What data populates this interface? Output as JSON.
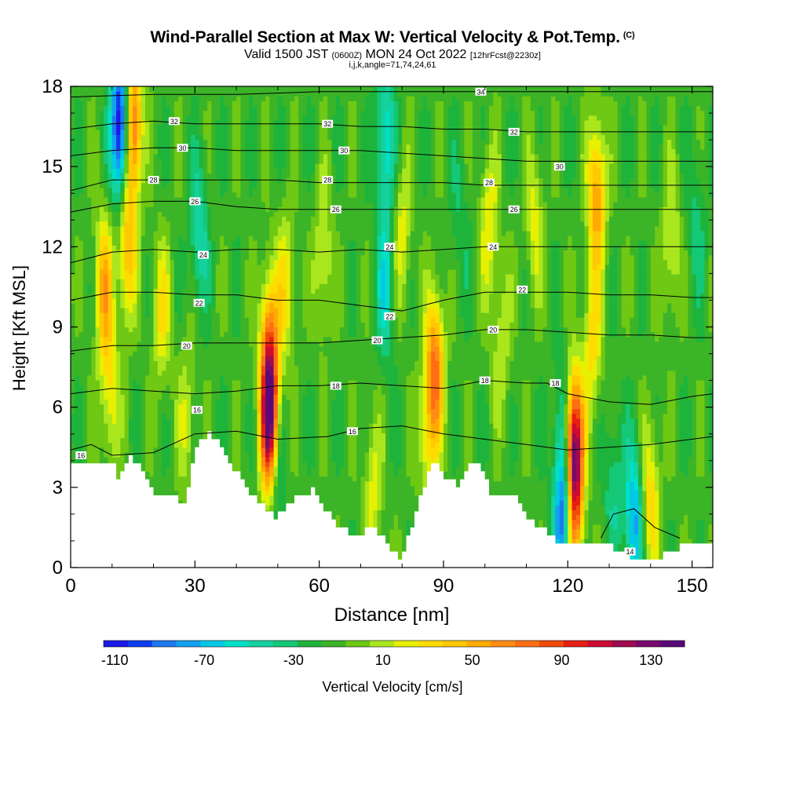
{
  "title": {
    "main": "Wind-Parallel Section at Max W: Vertical Velocity & Pot.Temp.",
    "main_tag": "(C)",
    "valid_prefix": "Valid 1500 JST",
    "valid_utc": "(0600Z)",
    "valid_date": "MON 24 Oct 2022",
    "forecast": "[12hrFcst@2230z]",
    "params": "i,j,k,angle=71,74,24,61"
  },
  "colors": {
    "terrain": "#ffffff",
    "contour_line": "#000000",
    "palette": [
      "#1a1ae6",
      "#0f3cf0",
      "#1e78f0",
      "#14a0f0",
      "#00c8e6",
      "#00e0c8",
      "#14d2a0",
      "#14c878",
      "#1eb43c",
      "#3cb428",
      "#6ec814",
      "#aae61e",
      "#e6f000",
      "#ffdc00",
      "#ffc800",
      "#ffaa00",
      "#ff8c14",
      "#ff6e14",
      "#f04b0a",
      "#e61e14",
      "#cd0a32",
      "#a00a50",
      "#780a6e",
      "#5a0a78"
    ]
  },
  "chart_data": {
    "type": "heatmap",
    "description_fields": "filled contours of vertical velocity with black potential temperature isolines",
    "xlabel": "Distance [nm]",
    "ylabel": "Height [Kft MSL]",
    "xlim": [
      0,
      155
    ],
    "ylim": [
      0,
      18
    ],
    "xticks": [
      0,
      30,
      60,
      90,
      120,
      150
    ],
    "yticks": [
      0,
      3,
      6,
      9,
      12,
      15,
      18
    ],
    "colorbar": {
      "label": "Vertical Velocity [cm/s]",
      "min": -115,
      "max": 145,
      "step": 10,
      "tick_labels": [
        -110,
        -70,
        -30,
        10,
        50,
        90,
        130
      ]
    },
    "terrain_kft": [
      [
        0,
        3.9
      ],
      [
        10,
        3.9
      ],
      [
        11,
        3.4
      ],
      [
        14,
        4.2
      ],
      [
        17,
        3.6
      ],
      [
        20,
        2.6
      ],
      [
        25,
        2.6
      ],
      [
        27,
        2.3
      ],
      [
        30,
        4.6
      ],
      [
        33,
        5.0
      ],
      [
        37,
        4.3
      ],
      [
        42,
        2.9
      ],
      [
        47,
        2.1
      ],
      [
        49,
        1.9
      ],
      [
        52,
        2.4
      ],
      [
        58,
        2.9
      ],
      [
        61,
        2.2
      ],
      [
        64,
        1.6
      ],
      [
        67,
        1.3
      ],
      [
        70,
        1.3
      ],
      [
        73,
        1.6
      ],
      [
        76,
        0.8
      ],
      [
        79,
        0.3
      ],
      [
        82,
        1.5
      ],
      [
        86,
        3.6
      ],
      [
        88,
        3.9
      ],
      [
        90,
        3.3
      ],
      [
        93,
        3.1
      ],
      [
        96,
        3.9
      ],
      [
        99,
        3.7
      ],
      [
        101,
        2.6
      ],
      [
        103,
        2.8
      ],
      [
        107,
        2.7
      ],
      [
        110,
        1.8
      ],
      [
        114,
        1.4
      ],
      [
        117,
        1.0
      ],
      [
        121,
        1.0
      ],
      [
        129,
        1.0
      ],
      [
        132,
        0.6
      ],
      [
        135,
        0.4
      ],
      [
        138,
        0.4
      ],
      [
        141,
        0.3
      ],
      [
        144,
        0.6
      ],
      [
        147,
        0.8
      ],
      [
        150,
        1.0
      ],
      [
        155,
        1.0
      ]
    ],
    "velocity_features": [
      {
        "x": 8,
        "y": 10.5,
        "w": 55
      },
      {
        "x": 9.5,
        "y": 6.5,
        "w": 35
      },
      {
        "x": 12,
        "y": 16.5,
        "w": -110
      },
      {
        "x": 15,
        "y": 16.5,
        "w": 90
      },
      {
        "x": 13.5,
        "y": 12,
        "w": 55
      },
      {
        "x": 22,
        "y": 9.5,
        "w": 35
      },
      {
        "x": 28,
        "y": 5.5,
        "w": 25
      },
      {
        "x": 31,
        "y": 12.5,
        "w": -35
      },
      {
        "x": 48,
        "y": 5.5,
        "w": 140
      },
      {
        "x": 48,
        "y": 8.5,
        "w": 60
      },
      {
        "x": 49.5,
        "y": 3.5,
        "w": -35
      },
      {
        "x": 52,
        "y": 10.5,
        "w": 35
      },
      {
        "x": 61,
        "y": 11.5,
        "w": 30
      },
      {
        "x": 73,
        "y": 3.0,
        "w": 30
      },
      {
        "x": 76,
        "y": 16,
        "w": -45
      },
      {
        "x": 76,
        "y": 10.5,
        "w": -40
      },
      {
        "x": 80,
        "y": 12.5,
        "w": 30
      },
      {
        "x": 88,
        "y": 7.5,
        "w": 75
      },
      {
        "x": 86,
        "y": 5.0,
        "w": 35
      },
      {
        "x": 94,
        "y": 13,
        "w": -15
      },
      {
        "x": 101,
        "y": 13,
        "w": 35
      },
      {
        "x": 104,
        "y": 8.5,
        "w": 25
      },
      {
        "x": 112,
        "y": 13,
        "w": 30
      },
      {
        "x": 119,
        "y": 2.0,
        "w": -85
      },
      {
        "x": 118.5,
        "y": 5.5,
        "w": -25
      },
      {
        "x": 121.5,
        "y": 4.5,
        "w": 120
      },
      {
        "x": 121.5,
        "y": 2.0,
        "w": 60
      },
      {
        "x": 127,
        "y": 14,
        "w": 65
      },
      {
        "x": 126,
        "y": 8.5,
        "w": 40
      },
      {
        "x": 131,
        "y": 3.0,
        "w": -25
      },
      {
        "x": 136,
        "y": 1.8,
        "w": -60
      },
      {
        "x": 140,
        "y": 2.5,
        "w": 45
      },
      {
        "x": 145,
        "y": 12,
        "w": 30
      },
      {
        "x": 151,
        "y": 13,
        "w": -20
      }
    ],
    "isotherms": [
      {
        "theta": 14,
        "label": "14",
        "label_pos": [
          135,
          0.6
        ],
        "points": [
          [
            128,
            1.1
          ],
          [
            131,
            2.0
          ],
          [
            136,
            2.2
          ],
          [
            141,
            1.5
          ],
          [
            147,
            1.1
          ]
        ]
      },
      {
        "theta": 16,
        "label": "16",
        "label_pos": [
          2.5,
          4.2
        ],
        "points": [
          [
            0,
            4.4
          ],
          [
            5,
            4.6
          ],
          [
            10,
            4.2
          ],
          [
            20,
            4.3
          ],
          [
            30,
            5.0
          ],
          [
            40,
            5.1
          ],
          [
            50,
            4.8
          ],
          [
            62,
            4.9
          ],
          [
            70,
            5.2
          ],
          [
            80,
            5.3
          ],
          [
            90,
            5.0
          ],
          [
            100,
            4.8
          ],
          [
            110,
            4.6
          ],
          [
            120,
            4.4
          ],
          [
            130,
            4.5
          ],
          [
            140,
            4.6
          ],
          [
            150,
            4.8
          ],
          [
            155,
            4.9
          ]
        ]
      },
      {
        "theta": 16,
        "label": "16",
        "label_pos": [
          68,
          5.1
        ]
      },
      {
        "theta": 16,
        "label": "16",
        "label_pos": [
          30.5,
          5.9
        ]
      },
      {
        "theta": 18,
        "label": "18",
        "label_pos": [
          64,
          6.8
        ],
        "points": [
          [
            0,
            6.5
          ],
          [
            10,
            6.7
          ],
          [
            20,
            6.6
          ],
          [
            30,
            6.5
          ],
          [
            40,
            6.6
          ],
          [
            50,
            6.8
          ],
          [
            60,
            6.8
          ],
          [
            70,
            6.9
          ],
          [
            80,
            6.8
          ],
          [
            90,
            6.7
          ],
          [
            100,
            7.0
          ],
          [
            110,
            6.9
          ],
          [
            115,
            6.9
          ],
          [
            120,
            6.5
          ],
          [
            130,
            6.2
          ],
          [
            140,
            6.1
          ],
          [
            150,
            6.4
          ],
          [
            155,
            6.5
          ]
        ]
      },
      {
        "theta": 18,
        "label": "18",
        "label_pos": [
          100,
          7.0
        ]
      },
      {
        "theta": 18,
        "label": "18",
        "label_pos": [
          117,
          6.9
        ]
      },
      {
        "theta": 20,
        "label": "20",
        "label_pos": [
          28,
          8.3
        ],
        "points": [
          [
            0,
            8.1
          ],
          [
            10,
            8.3
          ],
          [
            20,
            8.3
          ],
          [
            30,
            8.4
          ],
          [
            40,
            8.4
          ],
          [
            50,
            8.4
          ],
          [
            60,
            8.4
          ],
          [
            70,
            8.5
          ],
          [
            80,
            8.6
          ],
          [
            90,
            8.7
          ],
          [
            100,
            8.9
          ],
          [
            110,
            8.9
          ],
          [
            120,
            8.8
          ],
          [
            130,
            8.7
          ],
          [
            140,
            8.7
          ],
          [
            150,
            8.6
          ],
          [
            155,
            8.6
          ]
        ]
      },
      {
        "theta": 20,
        "label": "20",
        "label_pos": [
          74,
          8.5
        ]
      },
      {
        "theta": 20,
        "label": "20",
        "label_pos": [
          102,
          8.9
        ]
      },
      {
        "theta": 22,
        "label": "22",
        "label_pos": [
          31,
          9.9
        ],
        "points": [
          [
            0,
            10.0
          ],
          [
            10,
            10.3
          ],
          [
            20,
            10.3
          ],
          [
            30,
            10.2
          ],
          [
            40,
            10.2
          ],
          [
            50,
            10.0
          ],
          [
            60,
            10.0
          ],
          [
            70,
            9.8
          ],
          [
            80,
            9.6
          ],
          [
            90,
            10.0
          ],
          [
            100,
            10.3
          ],
          [
            110,
            10.3
          ],
          [
            120,
            10.3
          ],
          [
            130,
            10.2
          ],
          [
            140,
            10.2
          ],
          [
            150,
            10.1
          ],
          [
            155,
            10.1
          ]
        ]
      },
      {
        "theta": 22,
        "label": "22",
        "label_pos": [
          77,
          9.4
        ]
      },
      {
        "theta": 22,
        "label": "22",
        "label_pos": [
          109,
          10.4
        ]
      },
      {
        "theta": 24,
        "label": "24",
        "label_pos": [
          32,
          11.7
        ],
        "points": [
          [
            0,
            11.4
          ],
          [
            10,
            11.8
          ],
          [
            20,
            11.9
          ],
          [
            30,
            11.8
          ],
          [
            40,
            11.9
          ],
          [
            50,
            11.9
          ],
          [
            60,
            11.8
          ],
          [
            70,
            11.9
          ],
          [
            80,
            11.8
          ],
          [
            90,
            11.9
          ],
          [
            100,
            12.0
          ],
          [
            110,
            12.0
          ],
          [
            120,
            12.0
          ],
          [
            130,
            12.0
          ],
          [
            140,
            12.0
          ],
          [
            150,
            12.0
          ],
          [
            155,
            12.0
          ]
        ]
      },
      {
        "theta": 24,
        "label": "24",
        "label_pos": [
          77,
          12.0
        ]
      },
      {
        "theta": 24,
        "label": "24",
        "label_pos": [
          102,
          12.0
        ]
      },
      {
        "theta": 26,
        "label": "26",
        "label_pos": [
          30,
          13.7
        ],
        "points": [
          [
            0,
            13.3
          ],
          [
            10,
            13.6
          ],
          [
            20,
            13.7
          ],
          [
            30,
            13.7
          ],
          [
            40,
            13.5
          ],
          [
            50,
            13.4
          ],
          [
            60,
            13.4
          ],
          [
            70,
            13.4
          ],
          [
            80,
            13.4
          ],
          [
            90,
            13.4
          ],
          [
            100,
            13.4
          ],
          [
            110,
            13.4
          ],
          [
            120,
            13.4
          ],
          [
            130,
            13.4
          ],
          [
            140,
            13.4
          ],
          [
            150,
            13.4
          ],
          [
            155,
            13.4
          ]
        ]
      },
      {
        "theta": 26,
        "label": "26",
        "label_pos": [
          64,
          13.4
        ]
      },
      {
        "theta": 26,
        "label": "26",
        "label_pos": [
          107,
          13.4
        ]
      },
      {
        "theta": 28,
        "label": "28",
        "label_pos": [
          20,
          14.5
        ],
        "points": [
          [
            0,
            14.1
          ],
          [
            10,
            14.5
          ],
          [
            20,
            14.5
          ],
          [
            30,
            14.5
          ],
          [
            40,
            14.5
          ],
          [
            50,
            14.5
          ],
          [
            60,
            14.4
          ],
          [
            70,
            14.4
          ],
          [
            80,
            14.4
          ],
          [
            90,
            14.4
          ],
          [
            100,
            14.3
          ],
          [
            110,
            14.3
          ],
          [
            120,
            14.3
          ],
          [
            130,
            14.3
          ],
          [
            140,
            14.3
          ],
          [
            150,
            14.3
          ],
          [
            155,
            14.3
          ]
        ]
      },
      {
        "theta": 28,
        "label": "28",
        "label_pos": [
          62,
          14.5
        ]
      },
      {
        "theta": 28,
        "label": "28",
        "label_pos": [
          101,
          14.4
        ]
      },
      {
        "theta": 30,
        "label": "30",
        "label_pos": [
          27,
          15.7
        ],
        "points": [
          [
            0,
            15.4
          ],
          [
            10,
            15.6
          ],
          [
            20,
            15.7
          ],
          [
            30,
            15.7
          ],
          [
            40,
            15.6
          ],
          [
            50,
            15.6
          ],
          [
            60,
            15.6
          ],
          [
            70,
            15.6
          ],
          [
            80,
            15.5
          ],
          [
            90,
            15.4
          ],
          [
            100,
            15.3
          ],
          [
            110,
            15.2
          ],
          [
            120,
            15.2
          ],
          [
            130,
            15.2
          ],
          [
            140,
            15.2
          ],
          [
            150,
            15.2
          ],
          [
            155,
            15.2
          ]
        ]
      },
      {
        "theta": 30,
        "label": "30",
        "label_pos": [
          66,
          15.6
        ]
      },
      {
        "theta": 30,
        "label": "30",
        "label_pos": [
          118,
          15.0
        ]
      },
      {
        "theta": 32,
        "label": "32",
        "label_pos": [
          25,
          16.7
        ],
        "points": [
          [
            0,
            16.4
          ],
          [
            10,
            16.6
          ],
          [
            20,
            16.7
          ],
          [
            30,
            16.6
          ],
          [
            40,
            16.6
          ],
          [
            50,
            16.6
          ],
          [
            60,
            16.6
          ],
          [
            70,
            16.5
          ],
          [
            80,
            16.5
          ],
          [
            90,
            16.4
          ],
          [
            100,
            16.4
          ],
          [
            110,
            16.3
          ],
          [
            120,
            16.3
          ],
          [
            130,
            16.3
          ],
          [
            140,
            16.3
          ],
          [
            150,
            16.3
          ],
          [
            155,
            16.3
          ]
        ]
      },
      {
        "theta": 32,
        "label": "32",
        "label_pos": [
          62,
          16.6
        ]
      },
      {
        "theta": 32,
        "label": "32",
        "label_pos": [
          107,
          16.3
        ]
      },
      {
        "theta": 34,
        "label": "34",
        "label_pos": [
          99,
          17.8
        ],
        "points": [
          [
            0,
            17.6
          ],
          [
            20,
            17.7
          ],
          [
            40,
            17.7
          ],
          [
            60,
            17.8
          ],
          [
            80,
            17.8
          ],
          [
            100,
            17.8
          ],
          [
            120,
            17.8
          ],
          [
            140,
            17.8
          ],
          [
            155,
            17.8
          ]
        ]
      }
    ]
  }
}
